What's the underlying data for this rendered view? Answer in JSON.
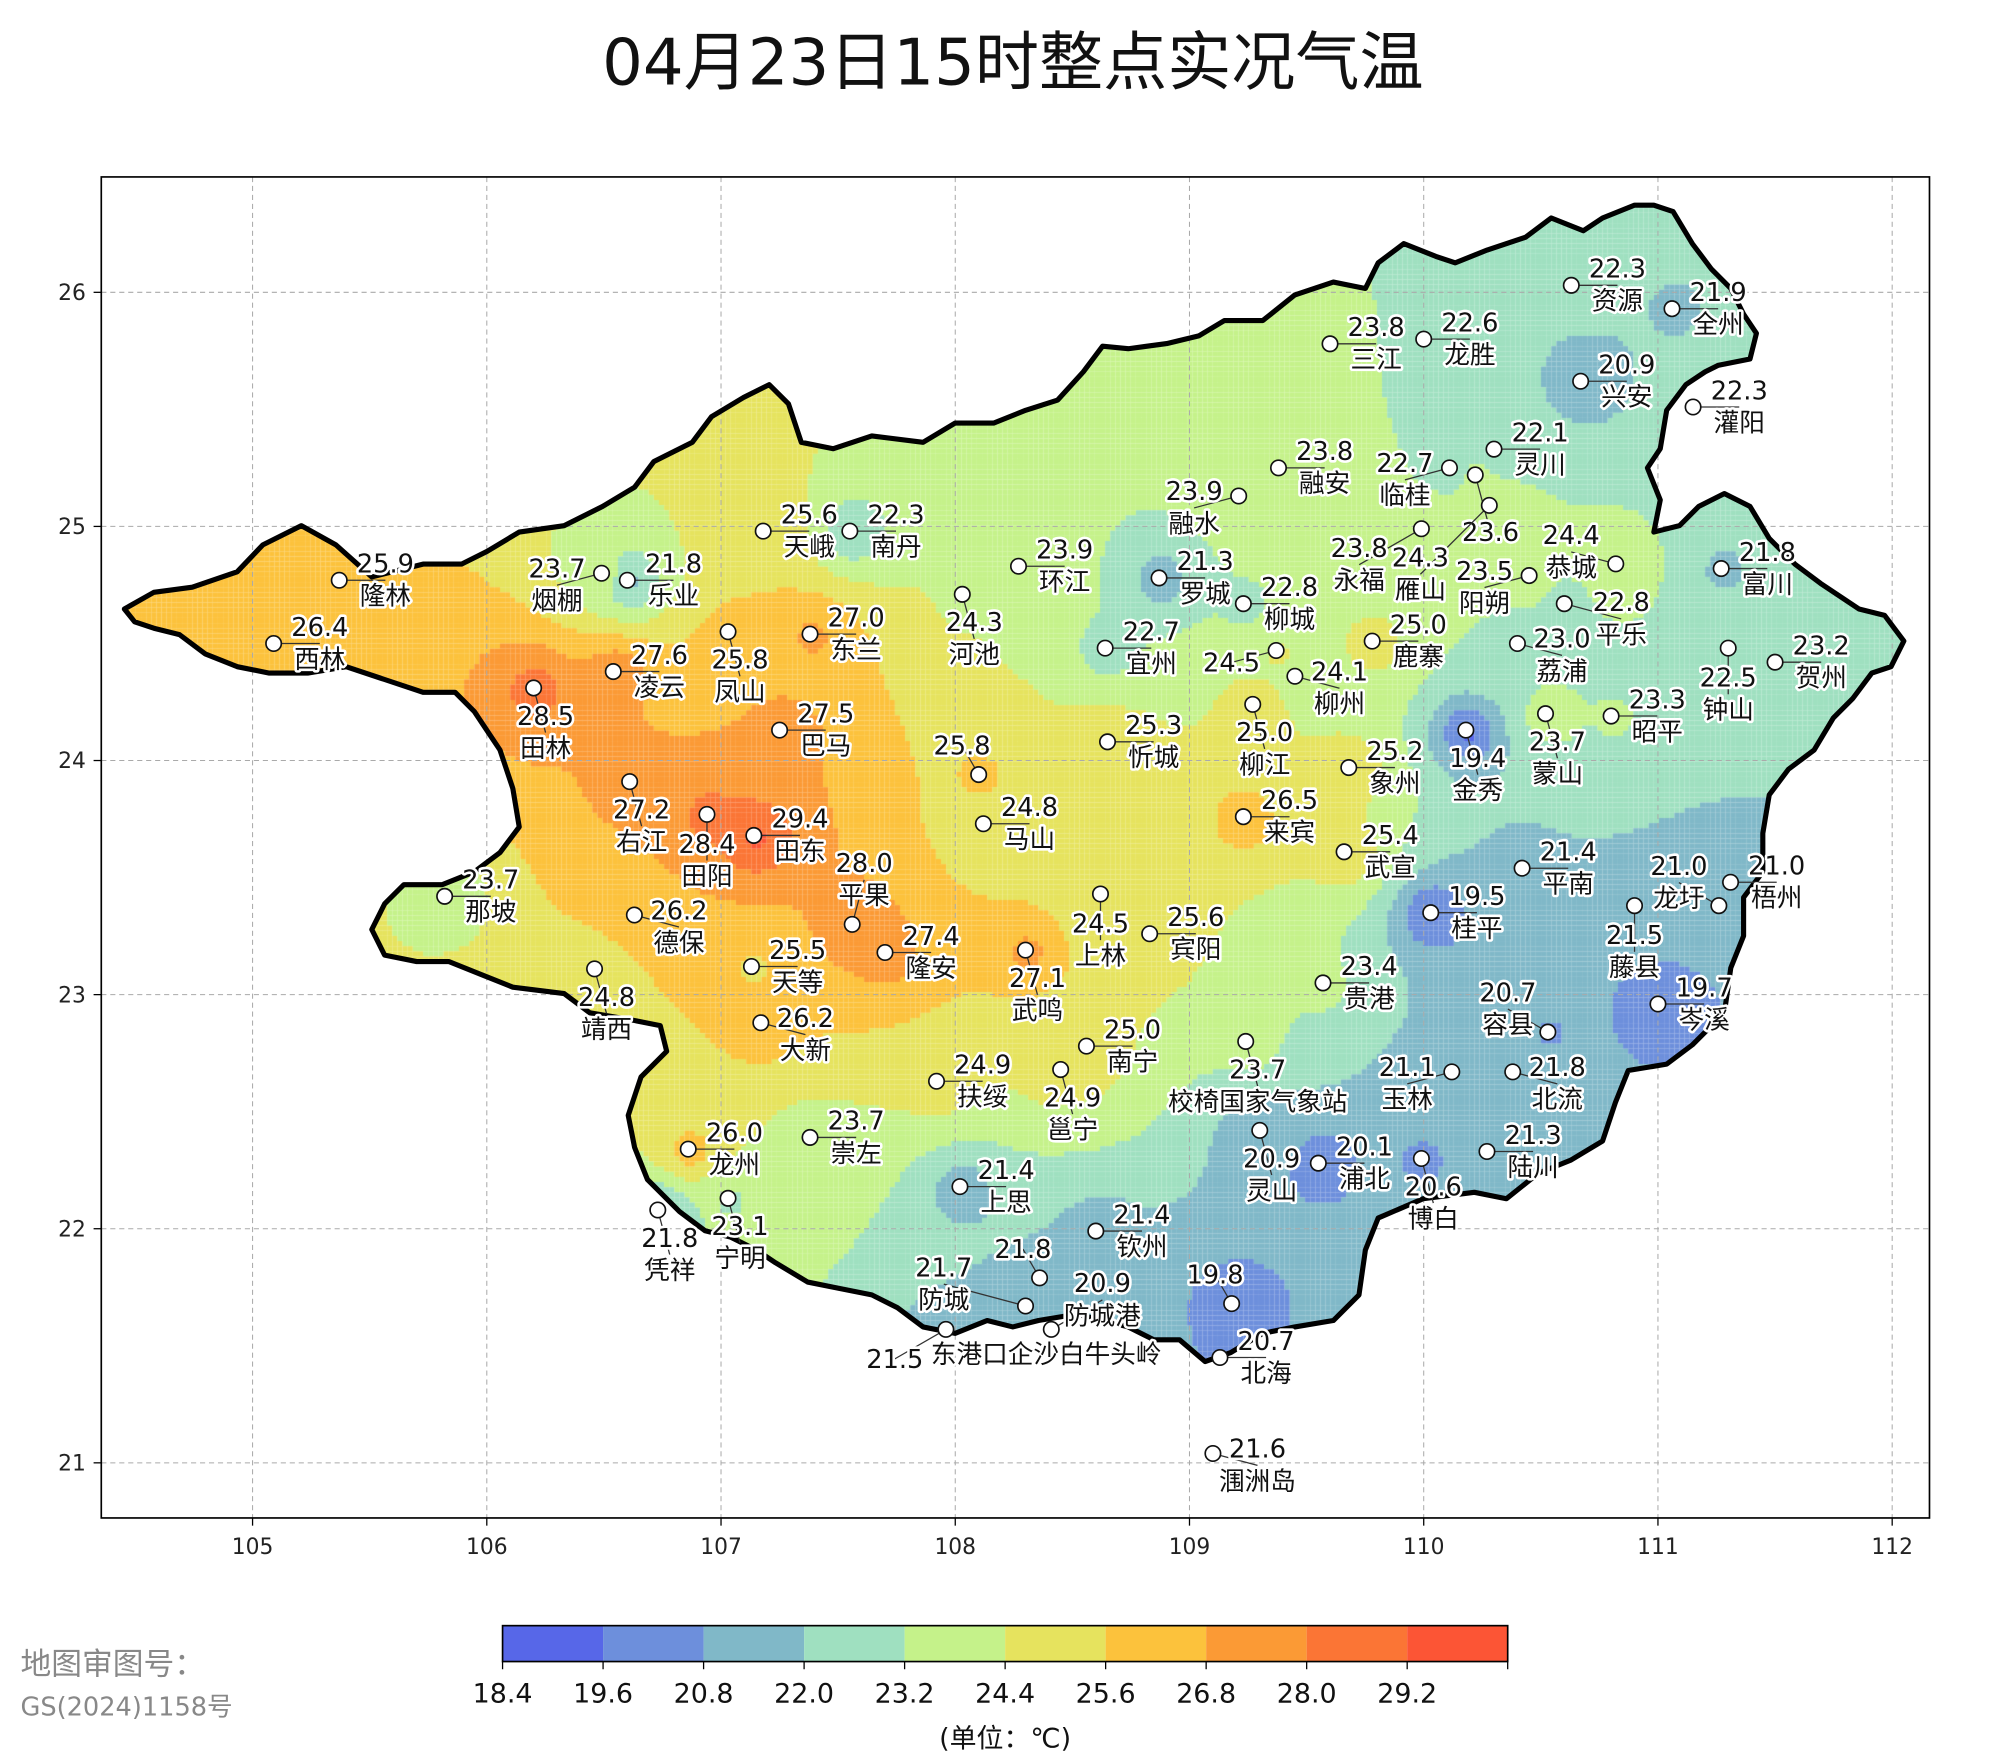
{
  "title": "04月23日15时整点实况气温",
  "map": {
    "lon_ticks": [
      105,
      106,
      107,
      108,
      109,
      110,
      111,
      112
    ],
    "lat_ticks": [
      26,
      25,
      24,
      23,
      22,
      21
    ],
    "lon_range": [
      104.35,
      112.15
    ],
    "lat_range": [
      20.78,
      26.5
    ],
    "grid": true
  },
  "stations": [
    {
      "name": "隆林",
      "value": "25.9",
      "lon": 105.37,
      "lat": 24.77
    },
    {
      "name": "西林",
      "value": "26.4",
      "lon": 105.09,
      "lat": 24.5
    },
    {
      "name": "田林",
      "value": "28.5",
      "lon": 106.2,
      "lat": 24.31
    },
    {
      "name": "凌云",
      "value": "27.6",
      "lon": 106.54,
      "lat": 24.38
    },
    {
      "name": "烟棚",
      "value": "23.7",
      "lon": 106.49,
      "lat": 24.8
    },
    {
      "name": "乐业",
      "value": "21.8",
      "lon": 106.6,
      "lat": 24.77
    },
    {
      "name": "天峨",
      "value": "25.6",
      "lon": 107.18,
      "lat": 24.98
    },
    {
      "name": "南丹",
      "value": "22.3",
      "lon": 107.55,
      "lat": 24.98
    },
    {
      "name": "凤山",
      "value": "25.8",
      "lon": 107.03,
      "lat": 24.55
    },
    {
      "name": "东兰",
      "value": "27.0",
      "lon": 107.38,
      "lat": 24.54
    },
    {
      "name": "巴马",
      "value": "27.5",
      "lon": 107.25,
      "lat": 24.13
    },
    {
      "name": "右江",
      "value": "27.2",
      "lon": 106.61,
      "lat": 23.91
    },
    {
      "name": "田阳",
      "value": "28.4",
      "lon": 106.94,
      "lat": 23.77
    },
    {
      "name": "田东",
      "value": "29.4",
      "lon": 107.14,
      "lat": 23.68
    },
    {
      "name": "那坡",
      "value": "23.7",
      "lon": 105.82,
      "lat": 23.42
    },
    {
      "name": "德保",
      "value": "26.2",
      "lon": 106.63,
      "lat": 23.34
    },
    {
      "name": "靖西",
      "value": "24.8",
      "lon": 106.46,
      "lat": 23.11
    },
    {
      "name": "天等",
      "value": "25.5",
      "lon": 107.13,
      "lat": 23.12
    },
    {
      "name": "大新",
      "value": "26.2",
      "lon": 107.17,
      "lat": 22.88
    },
    {
      "name": "平果",
      "value": "28.0",
      "lon": 107.56,
      "lat": 23.3
    },
    {
      "name": "隆安",
      "value": "27.4",
      "lon": 107.7,
      "lat": 23.18
    },
    {
      "name": "河池",
      "value": "24.3",
      "lon": 108.03,
      "lat": 24.71
    },
    {
      "name": "环江",
      "value": "23.9",
      "lon": 108.27,
      "lat": 24.83
    },
    {
      "name": "",
      "value": "25.8",
      "lon": 108.1,
      "lat": 23.94
    },
    {
      "name": "马山",
      "value": "24.8",
      "lon": 108.12,
      "lat": 23.73
    },
    {
      "name": "忻城",
      "value": "25.3",
      "lon": 108.65,
      "lat": 24.08
    },
    {
      "name": "宜州",
      "value": "22.7",
      "lon": 108.64,
      "lat": 24.48
    },
    {
      "name": "罗城",
      "value": "21.3",
      "lon": 108.87,
      "lat": 24.78
    },
    {
      "name": "上林",
      "value": "24.5",
      "lon": 108.62,
      "lat": 23.43
    },
    {
      "name": "宾阳",
      "value": "25.6",
      "lon": 108.83,
      "lat": 23.26
    },
    {
      "name": "武鸣",
      "value": "27.1",
      "lon": 108.3,
      "lat": 23.19
    },
    {
      "name": "南宁",
      "value": "25.0",
      "lon": 108.56,
      "lat": 22.78
    },
    {
      "name": "邕宁",
      "value": "24.9",
      "lon": 108.45,
      "lat": 22.68
    },
    {
      "name": "扶绥",
      "value": "24.9",
      "lon": 107.92,
      "lat": 22.63
    },
    {
      "name": "崇左",
      "value": "23.7",
      "lon": 107.38,
      "lat": 22.39
    },
    {
      "name": "龙州",
      "value": "26.0",
      "lon": 106.86,
      "lat": 22.34
    },
    {
      "name": "凭祥",
      "value": "21.8",
      "lon": 106.73,
      "lat": 22.08
    },
    {
      "name": "宁明",
      "value": "23.1",
      "lon": 107.03,
      "lat": 22.13
    },
    {
      "name": "上思",
      "value": "21.4",
      "lon": 108.02,
      "lat": 22.18
    },
    {
      "name": "钦州",
      "value": "21.4",
      "lon": 108.6,
      "lat": 21.99
    },
    {
      "name": "",
      "value": "21.8",
      "lon": 108.36,
      "lat": 21.79
    },
    {
      "name": "防城",
      "value": "21.7",
      "lon": 108.3,
      "lat": 21.67
    },
    {
      "name": "防城港",
      "value": "20.9",
      "lon": 108.41,
      "lat": 21.57
    },
    {
      "name": "",
      "value": "21.5",
      "lon": 107.96,
      "lat": 21.57
    },
    {
      "name": "",
      "value": "19.8",
      "lon": 109.18,
      "lat": 21.68
    },
    {
      "name": "北海",
      "value": "20.7",
      "lon": 109.13,
      "lat": 21.45
    },
    {
      "name": "涠洲岛",
      "value": "21.6",
      "lon": 109.1,
      "lat": 21.04
    },
    {
      "name": "灵山",
      "value": "20.9",
      "lon": 109.3,
      "lat": 22.42
    },
    {
      "name": "浦北",
      "value": "20.1",
      "lon": 109.55,
      "lat": 22.28
    },
    {
      "name": "博白",
      "value": "20.6",
      "lon": 109.99,
      "lat": 22.3
    },
    {
      "name": "陆川",
      "value": "21.3",
      "lon": 110.27,
      "lat": 22.33
    },
    {
      "name": "玉林",
      "value": "21.1",
      "lon": 110.12,
      "lat": 22.67
    },
    {
      "name": "北流",
      "value": "21.8",
      "lon": 110.38,
      "lat": 22.67
    },
    {
      "name": "容县",
      "value": "20.7",
      "lon": 110.53,
      "lat": 22.84
    },
    {
      "name": "岑溪",
      "value": "19.7",
      "lon": 111.0,
      "lat": 22.96
    },
    {
      "name": "校椅国家气象站",
      "value": "23.7",
      "lon": 109.24,
      "lat": 22.8
    },
    {
      "name": "贵港",
      "value": "23.4",
      "lon": 109.57,
      "lat": 23.05
    },
    {
      "name": "桂平",
      "value": "19.5",
      "lon": 110.03,
      "lat": 23.35
    },
    {
      "name": "平南",
      "value": "21.4",
      "lon": 110.42,
      "lat": 23.54
    },
    {
      "name": "藤县",
      "value": "21.5",
      "lon": 110.9,
      "lat": 23.38
    },
    {
      "name": "梧州",
      "value": "21.0",
      "lon": 111.31,
      "lat": 23.48
    },
    {
      "name": "龙圩",
      "value": "21.0",
      "lon": 111.26,
      "lat": 23.38
    },
    {
      "name": "来宾",
      "value": "26.5",
      "lon": 109.23,
      "lat": 23.76
    },
    {
      "name": "武宣",
      "value": "25.4",
      "lon": 109.66,
      "lat": 23.61
    },
    {
      "name": "象州",
      "value": "25.2",
      "lon": 109.68,
      "lat": 23.97
    },
    {
      "name": "金秀",
      "value": "19.4",
      "lon": 110.18,
      "lat": 24.13
    },
    {
      "name": "蒙山",
      "value": "23.7",
      "lon": 110.52,
      "lat": 24.2
    },
    {
      "name": "昭平",
      "value": "23.3",
      "lon": 110.8,
      "lat": 24.19
    },
    {
      "name": "荔浦",
      "value": "23.0",
      "lon": 110.4,
      "lat": 24.5
    },
    {
      "name": "阳朔",
      "value": "23.5",
      "lon": 110.45,
      "lat": 24.79
    },
    {
      "name": "平乐",
      "value": "22.8",
      "lon": 110.6,
      "lat": 24.67
    },
    {
      "name": "恭城",
      "value": "24.4",
      "lon": 110.82,
      "lat": 24.84
    },
    {
      "name": "钟山",
      "value": "22.5",
      "lon": 111.3,
      "lat": 24.48
    },
    {
      "name": "贺州",
      "value": "23.2",
      "lon": 111.5,
      "lat": 24.42
    },
    {
      "name": "富川",
      "value": "21.8",
      "lon": 111.27,
      "lat": 24.82
    },
    {
      "name": "灌阳",
      "value": "22.3",
      "lon": 111.15,
      "lat": 25.51
    },
    {
      "name": "全州",
      "value": "21.9",
      "lon": 111.06,
      "lat": 25.93
    },
    {
      "name": "资源",
      "value": "22.3",
      "lon": 110.63,
      "lat": 26.03
    },
    {
      "name": "兴安",
      "value": "20.9",
      "lon": 110.67,
      "lat": 25.62
    },
    {
      "name": "龙胜",
      "value": "22.6",
      "lon": 110.0,
      "lat": 25.8
    },
    {
      "name": "三江",
      "value": "23.8",
      "lon": 109.6,
      "lat": 25.78
    },
    {
      "name": "融安",
      "value": "23.8",
      "lon": 109.38,
      "lat": 25.25
    },
    {
      "name": "融水",
      "value": "23.9",
      "lon": 109.21,
      "lat": 25.13
    },
    {
      "name": "柳城",
      "value": "22.8",
      "lon": 109.23,
      "lat": 24.67
    },
    {
      "name": "",
      "value": "24.5",
      "lon": 109.37,
      "lat": 24.47
    },
    {
      "name": "柳州",
      "value": "24.1",
      "lon": 109.45,
      "lat": 24.36
    },
    {
      "name": "柳江",
      "value": "25.0",
      "lon": 109.27,
      "lat": 24.24
    },
    {
      "name": "鹿寨",
      "value": "25.0",
      "lon": 109.78,
      "lat": 24.51
    },
    {
      "name": "临桂",
      "value": "22.7",
      "lon": 110.11,
      "lat": 25.25
    },
    {
      "name": "灵川",
      "value": "22.1",
      "lon": 110.3,
      "lat": 25.33
    },
    {
      "name": "",
      "value": "23.6",
      "lon": 110.22,
      "lat": 25.22
    },
    {
      "name": "雁山",
      "value": "24.3",
      "lon": 110.28,
      "lat": 25.09
    },
    {
      "name": "永福",
      "value": "23.8",
      "lon": 109.99,
      "lat": 24.99
    }
  ],
  "coast_overlap_label": "东港口企沙白牛头岭",
  "colorbar": {
    "levels": [
      "18.4",
      "19.6",
      "20.8",
      "22.0",
      "23.2",
      "24.4",
      "25.6",
      "26.8",
      "28.0",
      "29.2"
    ],
    "max": 30.4,
    "colors": [
      "#5767e8",
      "#6d8fdc",
      "#80b8c8",
      "#9fe0c0",
      "#c5f28a",
      "#e6e35e",
      "#fcc23c",
      "#fb9a35",
      "#fb7535",
      "#fc5535"
    ],
    "unit_label": "(单位：℃)"
  },
  "review_number": {
    "label": "地图审图号：",
    "code": "GS(2024)1158号"
  }
}
